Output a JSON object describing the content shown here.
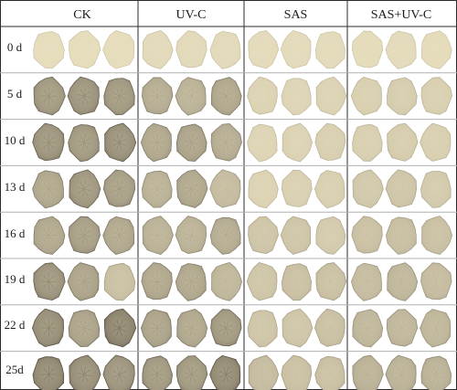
{
  "columns": [
    {
      "label": "CK"
    },
    {
      "label": "UV-C"
    },
    {
      "label": "SAS"
    },
    {
      "label": "SAS+UV-C"
    }
  ],
  "rows": [
    {
      "label": "0 d"
    },
    {
      "label": "5 d"
    },
    {
      "label": "10 d"
    },
    {
      "label": "13 d"
    },
    {
      "label": "16 d"
    },
    {
      "label": "19 d"
    },
    {
      "label": "22 d"
    },
    {
      "label": "25d"
    }
  ],
  "slice_browning": [
    [
      [
        0.02,
        0.02,
        0.02
      ],
      [
        0.05,
        0.05,
        0.05
      ],
      [
        0.04,
        0.04,
        0.04
      ],
      [
        0.03,
        0.04,
        0.03
      ]
    ],
    [
      [
        0.7,
        0.75,
        0.7
      ],
      [
        0.5,
        0.45,
        0.55
      ],
      [
        0.12,
        0.1,
        0.12
      ],
      [
        0.15,
        0.18,
        0.15
      ]
    ],
    [
      [
        0.75,
        0.7,
        0.78
      ],
      [
        0.55,
        0.6,
        0.5
      ],
      [
        0.1,
        0.12,
        0.15
      ],
      [
        0.15,
        0.18,
        0.15
      ]
    ],
    [
      [
        0.55,
        0.72,
        0.65
      ],
      [
        0.45,
        0.55,
        0.35
      ],
      [
        0.12,
        0.14,
        0.15
      ],
      [
        0.22,
        0.25,
        0.2
      ]
    ],
    [
      [
        0.55,
        0.65,
        0.55
      ],
      [
        0.45,
        0.45,
        0.5
      ],
      [
        0.25,
        0.25,
        0.2
      ],
      [
        0.3,
        0.32,
        0.3
      ]
    ],
    [
      [
        0.75,
        0.6,
        0.3
      ],
      [
        0.55,
        0.55,
        0.4
      ],
      [
        0.25,
        0.3,
        0.3
      ],
      [
        0.35,
        0.4,
        0.35
      ]
    ],
    [
      [
        0.8,
        0.6,
        0.9
      ],
      [
        0.6,
        0.55,
        0.7
      ],
      [
        0.25,
        0.25,
        0.3
      ],
      [
        0.4,
        0.4,
        0.4
      ]
    ],
    [
      [
        0.85,
        0.8,
        0.75
      ],
      [
        0.7,
        0.7,
        0.85
      ],
      [
        0.35,
        0.3,
        0.3
      ],
      [
        0.45,
        0.45,
        0.45
      ]
    ]
  ],
  "colors": {
    "fresh": "#e8dfbf",
    "browned": "#5a5243",
    "divider": "#2b2b2b",
    "separator": "#b0b0b0"
  }
}
